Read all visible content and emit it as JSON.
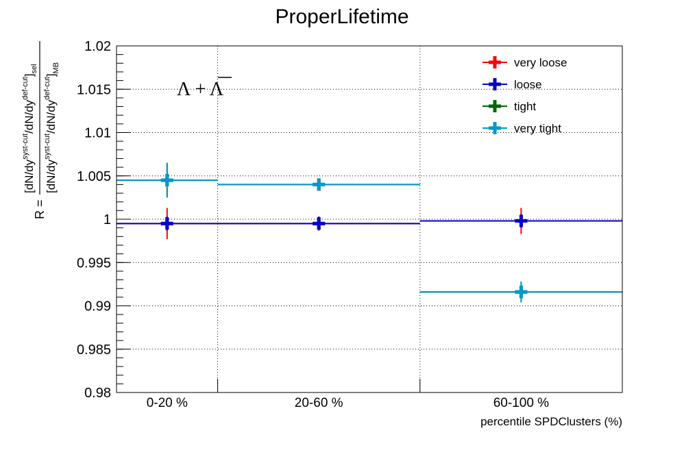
{
  "chart_data": {
    "type": "scatter",
    "title": "ProperLifetime",
    "xlabel": "percentile SPDClusters (%)",
    "ylabel": {
      "prefix": "R =",
      "numerator": "[dN/dy",
      "numerator_sup1": "syst-cut",
      "numerator_mid": "/dN/dy",
      "numerator_sup2": "def-cut",
      "numerator_close": "]",
      "numerator_sub": "sel",
      "denominator": "[dN/dy",
      "denominator_sup1": "syst-cut",
      "denominator_mid": "/dN/dy",
      "denominator_sup2": "def-cut",
      "denominator_close": "]",
      "denominator_sub": "MB"
    },
    "annotation": "Λ + Λ",
    "categories": [
      "0-20 %",
      "20-60 %",
      "60-100 %"
    ],
    "ylim": [
      0.98,
      1.02
    ],
    "yticks": [
      "0.98",
      "0.985",
      "0.99",
      "0.995",
      "1",
      "1.005",
      "1.01",
      "1.015",
      "1.02"
    ],
    "grid": true,
    "legend_position": "top-right",
    "series": [
      {
        "name": "very loose",
        "color": "#ff0000",
        "values": [
          0.9995,
          0.9995,
          0.9998
        ],
        "errors": [
          0.0018,
          0.0008,
          0.0015
        ]
      },
      {
        "name": "loose",
        "color": "#0000cc",
        "values": [
          0.9995,
          0.9995,
          0.9998
        ],
        "errors": [
          0.0008,
          0.0008,
          0.0008
        ]
      },
      {
        "name": "tight",
        "color": "#006600",
        "values": [
          1.0045,
          1.004,
          0.9916
        ],
        "errors": [
          0.002,
          0.0006,
          0.0012
        ]
      },
      {
        "name": "very tight",
        "color": "#0099cc",
        "values": [
          1.0045,
          1.004,
          0.9916
        ],
        "errors": [
          0.002,
          0.0006,
          0.0012
        ]
      }
    ]
  }
}
